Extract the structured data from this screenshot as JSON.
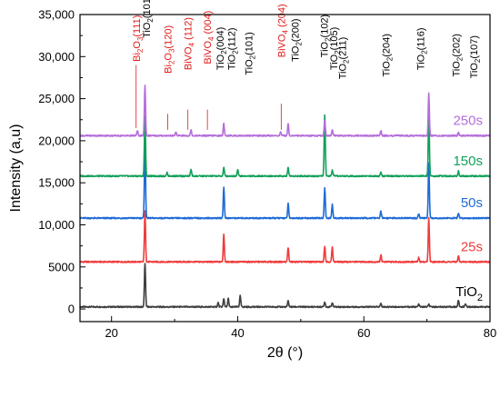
{
  "chart_data": {
    "type": "line",
    "xlabel": "2θ (°)",
    "ylabel": "Intensity (a,u)",
    "xlim": [
      15,
      80
    ],
    "ylim": [
      -1500,
      35000
    ],
    "x_ticks": [
      20,
      40,
      60,
      80
    ],
    "x_tick_labels": [
      "20",
      "40",
      "60",
      "80"
    ],
    "y_ticks": [
      0,
      5000,
      10000,
      15000,
      20000,
      25000,
      30000,
      35000
    ],
    "y_tick_labels": [
      "0",
      "5000",
      "10,000",
      "15,000",
      "20,000",
      "25,000",
      "30,000",
      "35,000"
    ],
    "grid": false,
    "series": [
      {
        "name": "TiO",
        "name_sub": "2",
        "color": "#3f3f3f",
        "baseline": 250,
        "peaks": [
          [
            25.3,
            5200
          ],
          [
            36.9,
            500
          ],
          [
            37.8,
            1000
          ],
          [
            38.5,
            1000
          ],
          [
            40.4,
            1300
          ],
          [
            48.0,
            700
          ],
          [
            53.8,
            600
          ],
          [
            55.0,
            500
          ],
          [
            62.7,
            400
          ],
          [
            68.7,
            300
          ],
          [
            70.3,
            300
          ],
          [
            75.0,
            800
          ],
          [
            76.1,
            400
          ]
        ]
      },
      {
        "name": "25s",
        "color": "#f03b3b",
        "baseline": 5600,
        "peaks": [
          [
            25.3,
            6000
          ],
          [
            37.8,
            3300
          ],
          [
            48.0,
            1700
          ],
          [
            53.8,
            1900
          ],
          [
            55.0,
            1700
          ],
          [
            62.7,
            800
          ],
          [
            68.7,
            500
          ],
          [
            70.3,
            5200
          ],
          [
            75.0,
            700
          ]
        ]
      },
      {
        "name": "50s",
        "color": "#1e6bd6",
        "baseline": 10800,
        "peaks": [
          [
            25.3,
            9000
          ],
          [
            37.8,
            3700
          ],
          [
            48.0,
            1700
          ],
          [
            53.8,
            3600
          ],
          [
            55.0,
            1600
          ],
          [
            62.7,
            800
          ],
          [
            68.7,
            500
          ],
          [
            70.3,
            6600
          ],
          [
            75.0,
            600
          ]
        ]
      },
      {
        "name": "150s",
        "color": "#12a05a",
        "baseline": 15800,
        "peaks": [
          [
            25.3,
            7200
          ],
          [
            28.8,
            400
          ],
          [
            32.6,
            800
          ],
          [
            37.8,
            1000
          ],
          [
            40.0,
            800
          ],
          [
            48.0,
            1000
          ],
          [
            53.8,
            7200
          ],
          [
            55.0,
            700
          ],
          [
            62.7,
            500
          ],
          [
            70.3,
            7400
          ],
          [
            75.0,
            600
          ]
        ]
      },
      {
        "name": "250s",
        "color": "#b56edb",
        "baseline": 20600,
        "peaks": [
          [
            24.1,
            600
          ],
          [
            25.3,
            6000
          ],
          [
            30.2,
            400
          ],
          [
            32.6,
            700
          ],
          [
            37.8,
            1400
          ],
          [
            46.8,
            400
          ],
          [
            48.0,
            1400
          ],
          [
            53.8,
            1900
          ],
          [
            55.0,
            700
          ],
          [
            62.7,
            600
          ],
          [
            70.3,
            5000
          ],
          [
            75.0,
            400
          ]
        ]
      }
    ],
    "annotations": [
      {
        "parts": [
          [
            "Bi",
            ""
          ],
          [
            "2",
            "sub"
          ],
          [
            "O",
            ""
          ],
          [
            "3",
            "sub"
          ],
          [
            "(111)",
            ""
          ]
        ],
        "color": "#e01a1a",
        "x": 23.9,
        "y_text": 29400,
        "leader": [
          21500,
          29000
        ]
      },
      {
        "parts": [
          [
            "TiO",
            ""
          ],
          [
            "2",
            "sub"
          ],
          [
            "(101)",
            ""
          ]
        ],
        "color": "#000000",
        "x": 25.5,
        "y_text": 32200,
        "leader": null
      },
      {
        "parts": [
          [
            "Bi",
            ""
          ],
          [
            "2",
            "sub"
          ],
          [
            "O",
            ""
          ],
          [
            "3",
            "sub"
          ],
          [
            "(120)",
            ""
          ]
        ],
        "color": "#e01a1a",
        "x": 28.9,
        "y_text": 28000,
        "leader": [
          21300,
          23200
        ]
      },
      {
        "parts": [
          [
            "BiVO",
            ""
          ],
          [
            "4",
            "sub"
          ],
          [
            " (112)",
            ""
          ]
        ],
        "color": "#e01a1a",
        "x": 32.1,
        "y_text": 28400,
        "leader": [
          21300,
          23700
        ]
      },
      {
        "parts": [
          [
            "BiVO",
            ""
          ],
          [
            "4",
            "sub"
          ],
          [
            " (004)",
            ""
          ]
        ],
        "color": "#e01a1a",
        "x": 35.2,
        "y_text": 29100,
        "leader": [
          21300,
          23700
        ]
      },
      {
        "parts": [
          [
            "TiO",
            ""
          ],
          [
            "2",
            "sub"
          ],
          [
            "(004)",
            ""
          ]
        ],
        "color": "#000000",
        "x": 37.2,
        "y_text": 28400,
        "leader": null
      },
      {
        "parts": [
          [
            "TiO",
            ""
          ],
          [
            "2",
            "sub"
          ],
          [
            "(112)",
            ""
          ]
        ],
        "color": "#000000",
        "x": 39.0,
        "y_text": 28400,
        "leader": null
      },
      {
        "parts": [
          [
            "TiO",
            ""
          ],
          [
            "2",
            "sub"
          ],
          [
            "(101)",
            ""
          ]
        ],
        "color": "#000000",
        "x": 41.7,
        "y_text": 27800,
        "leader": null
      },
      {
        "parts": [
          [
            "BiVO",
            ""
          ],
          [
            "4",
            "sub"
          ],
          [
            " (204)",
            ""
          ]
        ],
        "color": "#e01a1a",
        "x": 46.9,
        "y_text": 29900,
        "leader": [
          21300,
          24400
        ]
      },
      {
        "parts": [
          [
            "TiO",
            ""
          ],
          [
            "2",
            "sub"
          ],
          [
            "(200)",
            ""
          ]
        ],
        "color": "#000000",
        "x": 49.1,
        "y_text": 29400,
        "leader": null
      },
      {
        "parts": [
          [
            "TiO",
            ""
          ],
          [
            "2",
            "sub"
          ],
          [
            "(102)",
            ""
          ]
        ],
        "color": "#000000",
        "x": 53.7,
        "y_text": 29900,
        "leader": null
      },
      {
        "parts": [
          [
            "TiO",
            ""
          ],
          [
            "2",
            "sub"
          ],
          [
            "(105)",
            ""
          ]
        ],
        "color": "#000000",
        "x": 55.2,
        "y_text": 28400,
        "leader": null
      },
      {
        "parts": [
          [
            "TiO",
            ""
          ],
          [
            "2",
            "sub"
          ],
          [
            "(211)",
            ""
          ]
        ],
        "color": "#000000",
        "x": 56.6,
        "y_text": 27300,
        "leader": null
      },
      {
        "parts": [
          [
            "TiO",
            ""
          ],
          [
            "2",
            "sub"
          ],
          [
            "(204)",
            ""
          ]
        ],
        "color": "#000000",
        "x": 63.5,
        "y_text": 27600,
        "leader": null
      },
      {
        "parts": [
          [
            "TiO",
            ""
          ],
          [
            "2",
            "sub"
          ],
          [
            "(116)",
            ""
          ]
        ],
        "color": "#000000",
        "x": 69.0,
        "y_text": 28400,
        "leader": null
      },
      {
        "parts": [
          [
            "TiO",
            ""
          ],
          [
            "2",
            "sub"
          ],
          [
            "(202)",
            ""
          ]
        ],
        "color": "#000000",
        "x": 74.6,
        "y_text": 27600,
        "leader": null
      },
      {
        "parts": [
          [
            "TiO",
            ""
          ],
          [
            "2",
            "sub"
          ],
          [
            "(107)",
            ""
          ]
        ],
        "color": "#000000",
        "x": 77.4,
        "y_text": 27400,
        "leader": null
      }
    ]
  }
}
